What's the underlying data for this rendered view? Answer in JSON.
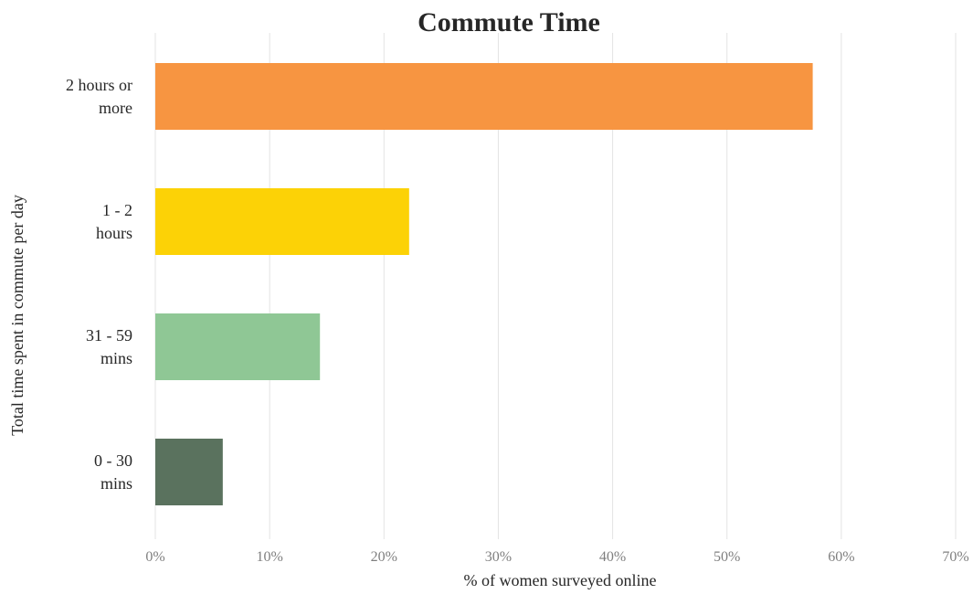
{
  "chart_data": {
    "type": "bar",
    "orientation": "horizontal",
    "title": "Commute Time",
    "xlabel": "% of women surveyed online",
    "ylabel": "Total time spent in commute per day",
    "xlim": [
      0,
      70
    ],
    "xticks": [
      0,
      10,
      20,
      30,
      40,
      50,
      60,
      70
    ],
    "tick_suffix": "%",
    "grid": true,
    "legend": "none",
    "categories": [
      [
        "2 hours or",
        "more"
      ],
      [
        "1 - 2",
        "hours"
      ],
      [
        "31 - 59",
        "mins"
      ],
      [
        "0 - 30",
        "mins"
      ]
    ],
    "values": [
      57.5,
      22.2,
      14.4,
      5.9
    ],
    "colors": [
      "#f79541",
      "#fcd206",
      "#8fc795",
      "#5a725e"
    ]
  }
}
